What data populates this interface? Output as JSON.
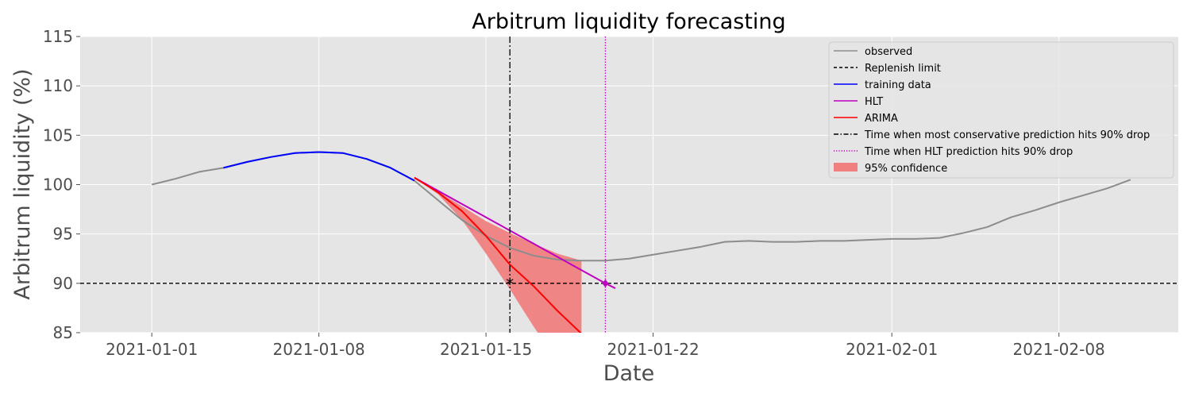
{
  "chart_data": {
    "type": "line",
    "title": "Arbitrum liquidity forecasting",
    "xlabel": "Date",
    "ylabel": "Arbitrum liquidity (%)",
    "x_type": "date",
    "xlim": [
      "2020-12-29",
      "2021-02-13"
    ],
    "ylim": [
      85,
      115
    ],
    "x_ticks": [
      "2021-01-01",
      "2021-01-08",
      "2021-01-15",
      "2021-01-22",
      "2021-02-01",
      "2021-02-08"
    ],
    "y_ticks": [
      85,
      90,
      95,
      100,
      105,
      110,
      115
    ],
    "grid": true,
    "legend_position": "top-right",
    "colors": {
      "observed": "#8c8c8c",
      "replenish": "#000000",
      "training": "#0000ff",
      "hlt": "#c000c0",
      "arima": "#ff0000",
      "conservative_line": "#000000",
      "hlt_time_line": "#c000c0",
      "confidence": "#f08080",
      "plot_bg": "#e5e5e5",
      "grid": "#ffffff"
    },
    "series": [
      {
        "name": "observed",
        "x": [
          "2021-01-01",
          "2021-01-02",
          "2021-01-03",
          "2021-01-04",
          "2021-01-05",
          "2021-01-06",
          "2021-01-07",
          "2021-01-08",
          "2021-01-09",
          "2021-01-10",
          "2021-01-11",
          "2021-01-12",
          "2021-01-13",
          "2021-01-14",
          "2021-01-15",
          "2021-01-16",
          "2021-01-17",
          "2021-01-18",
          "2021-01-19",
          "2021-01-20",
          "2021-01-21",
          "2021-01-22",
          "2021-01-23",
          "2021-01-24",
          "2021-01-25",
          "2021-01-26",
          "2021-01-27",
          "2021-01-28",
          "2021-01-29",
          "2021-01-30",
          "2021-01-31",
          "2021-02-01",
          "2021-02-02",
          "2021-02-03",
          "2021-02-04",
          "2021-02-05",
          "2021-02-06",
          "2021-02-07",
          "2021-02-08",
          "2021-02-09",
          "2021-02-10",
          "2021-02-11"
        ],
        "y": [
          100.0,
          100.6,
          101.3,
          101.7,
          102.3,
          102.8,
          103.2,
          103.3,
          103.2,
          102.6,
          101.7,
          100.4,
          98.4,
          96.4,
          94.8,
          93.6,
          92.8,
          92.4,
          92.3,
          92.3,
          92.5,
          92.9,
          93.3,
          93.7,
          94.2,
          94.3,
          94.2,
          94.2,
          94.3,
          94.3,
          94.4,
          94.5,
          94.5,
          94.6,
          95.1,
          95.7,
          96.7,
          97.4,
          98.2,
          98.9,
          99.6,
          100.5
        ]
      },
      {
        "name": "training data",
        "x": [
          "2021-01-04",
          "2021-01-05",
          "2021-01-06",
          "2021-01-07",
          "2021-01-08",
          "2021-01-09",
          "2021-01-10",
          "2021-01-11",
          "2021-01-12"
        ],
        "y": [
          101.7,
          102.3,
          102.8,
          103.2,
          103.3,
          103.2,
          102.6,
          101.7,
          100.4
        ]
      },
      {
        "name": "HLT",
        "x": [
          "2021-01-12",
          "2021-01-20",
          "2021-01-20T10:00"
        ],
        "y": [
          100.7,
          90.0,
          89.5
        ]
      },
      {
        "name": "ARIMA",
        "x": [
          "2021-01-12",
          "2021-01-13",
          "2021-01-14",
          "2021-01-15",
          "2021-01-16",
          "2021-01-17",
          "2021-01-18",
          "2021-01-19"
        ],
        "y": [
          100.7,
          99.2,
          97.3,
          94.8,
          91.9,
          89.7,
          87.2,
          84.9
        ]
      }
    ],
    "confidence_band": {
      "name": "95% confidence",
      "x": [
        "2021-01-12",
        "2021-01-13",
        "2021-01-14",
        "2021-01-15",
        "2021-01-16",
        "2021-01-17",
        "2021-01-18",
        "2021-01-19"
      ],
      "lower": [
        100.7,
        99.0,
        96.4,
        93.0,
        89.4,
        85.6,
        82.0,
        78.0
      ],
      "upper": [
        100.7,
        99.3,
        97.8,
        96.3,
        95.1,
        94.0,
        93.0,
        92.3
      ]
    },
    "horizontal_lines": [
      {
        "name": "Replenish limit",
        "y": 90
      }
    ],
    "vertical_lines": [
      {
        "name": "Time when most conservative prediction hits 90% drop",
        "x": "2021-01-16"
      },
      {
        "name": "Time when HLT prediction hits 90% drop",
        "x": "2021-01-20"
      }
    ],
    "markers": [
      {
        "name": "conservative-hit",
        "x": "2021-01-16",
        "y": 90,
        "symbol": "*"
      },
      {
        "name": "hlt-hit",
        "x": "2021-01-20",
        "y": 90,
        "symbol": "◆"
      }
    ],
    "legend": [
      {
        "label": "observed",
        "style": "solid",
        "color": "#8c8c8c"
      },
      {
        "label": "Replenish limit",
        "style": "dashed",
        "color": "#000000"
      },
      {
        "label": "training data",
        "style": "solid",
        "color": "#0000ff"
      },
      {
        "label": "HLT",
        "style": "solid",
        "color": "#c000c0"
      },
      {
        "label": "ARIMA",
        "style": "solid",
        "color": "#ff0000"
      },
      {
        "label": "Time when most conservative prediction hits 90% drop",
        "style": "dashdot",
        "color": "#000000"
      },
      {
        "label": "Time when HLT prediction hits 90% drop",
        "style": "dotted",
        "color": "#c000c0"
      },
      {
        "label": "95% confidence",
        "style": "patch",
        "color": "#f08080"
      }
    ]
  }
}
